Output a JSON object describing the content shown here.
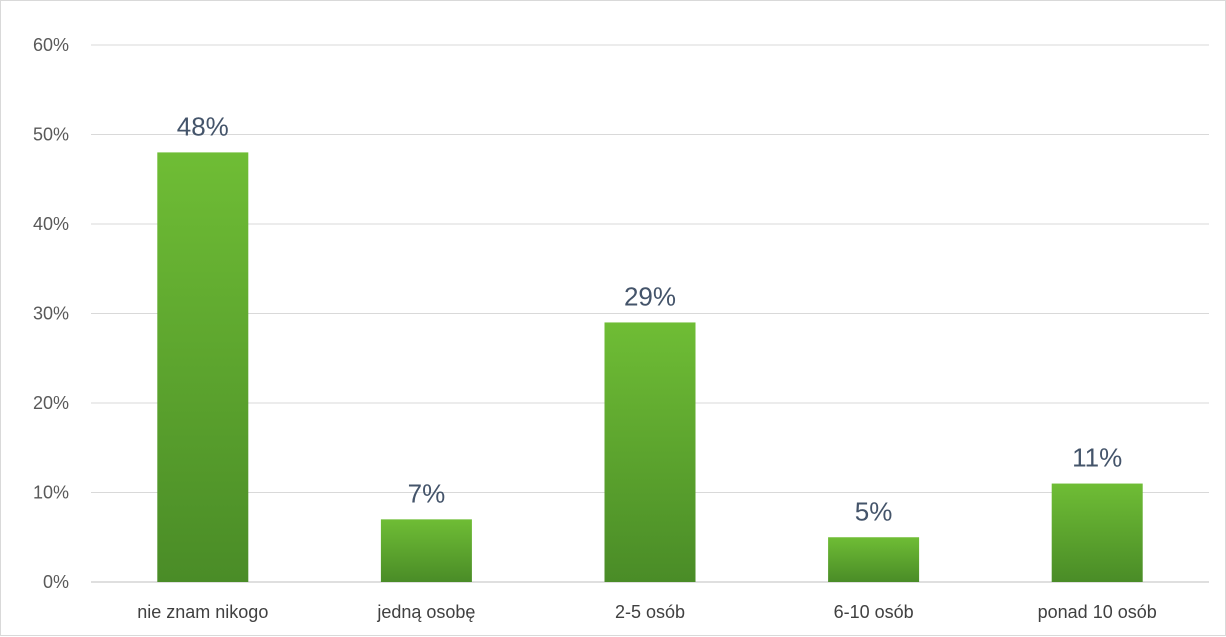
{
  "chart_data": {
    "type": "bar",
    "categories": [
      "nie znam nikogo",
      "jedną osobę",
      "2-5 osób",
      "6-10 osób",
      "ponad 10 osób"
    ],
    "values": [
      48,
      7,
      29,
      5,
      11
    ],
    "data_labels": [
      "48%",
      "7%",
      "29%",
      "5%",
      "11%"
    ],
    "y_ticks": [
      "0%",
      "10%",
      "20%",
      "30%",
      "40%",
      "50%",
      "60%"
    ],
    "ylim": [
      0,
      60
    ],
    "grid": true,
    "legend": "none",
    "colors": {
      "bar_top": "#6fbd35",
      "bar_bottom": "#4a8c27",
      "grid": "#d9d9d9",
      "axis": "#bfbfbf"
    }
  }
}
